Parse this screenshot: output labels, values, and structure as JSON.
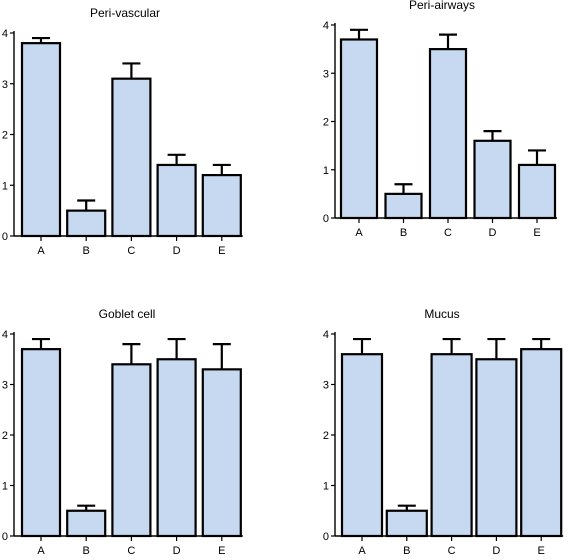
{
  "chart_data": [
    {
      "type": "bar",
      "title": "Peri-vascular",
      "categories": [
        "A",
        "B",
        "C",
        "D",
        "E"
      ],
      "values": [
        3.8,
        0.5,
        3.1,
        1.4,
        1.2
      ],
      "errors": [
        0.1,
        0.2,
        0.3,
        0.2,
        0.2
      ],
      "ylim": [
        0,
        4
      ],
      "yticks": [
        "0",
        "1",
        "2",
        "3",
        "4"
      ],
      "xlabel": "",
      "ylabel": "",
      "bar_color": "#c6d9f1",
      "edge_color": "#000000",
      "grid": false
    },
    {
      "type": "bar",
      "title": "Peri-airways",
      "categories": [
        "A",
        "B",
        "C",
        "D",
        "E"
      ],
      "values": [
        3.7,
        0.5,
        3.5,
        1.6,
        1.1
      ],
      "errors": [
        0.2,
        0.2,
        0.3,
        0.2,
        0.3
      ],
      "ylim": [
        0,
        4
      ],
      "yticks": [
        "0",
        "1",
        "2",
        "3",
        "4"
      ],
      "xlabel": "",
      "ylabel": "",
      "bar_color": "#c6d9f1",
      "edge_color": "#000000",
      "grid": false
    },
    {
      "type": "bar",
      "title": "Goblet cell",
      "categories": [
        "A",
        "B",
        "C",
        "D",
        "E"
      ],
      "values": [
        3.7,
        0.5,
        3.4,
        3.5,
        3.3
      ],
      "errors": [
        0.2,
        0.1,
        0.4,
        0.4,
        0.5
      ],
      "ylim": [
        0,
        4
      ],
      "yticks": [
        "0",
        "1",
        "2",
        "3",
        "4"
      ],
      "xlabel": "",
      "ylabel": "",
      "bar_color": "#c6d9f1",
      "edge_color": "#000000",
      "grid": false
    },
    {
      "type": "bar",
      "title": "Mucus",
      "categories": [
        "A",
        "B",
        "C",
        "D",
        "E"
      ],
      "values": [
        3.6,
        0.5,
        3.6,
        3.5,
        3.7
      ],
      "errors": [
        0.3,
        0.1,
        0.3,
        0.4,
        0.2
      ],
      "ylim": [
        0,
        4
      ],
      "yticks": [
        "0",
        "1",
        "2",
        "3",
        "4"
      ],
      "xlabel": "",
      "ylabel": "",
      "bar_color": "#c6d9f1",
      "edge_color": "#000000",
      "grid": false
    }
  ]
}
